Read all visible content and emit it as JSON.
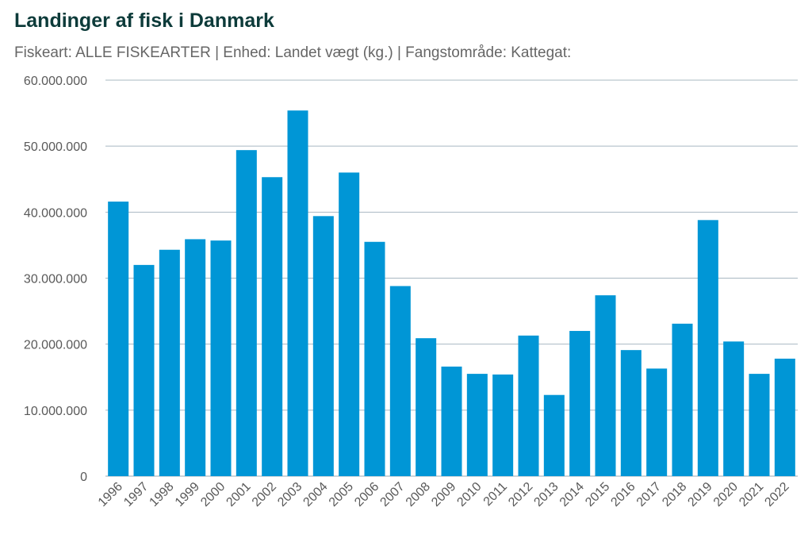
{
  "chart_data": {
    "type": "bar",
    "title": "Landinger af fisk i Danmark",
    "subtitle": "Fiskeart: ALLE FISKEARTER | Enhed: Landet vægt (kg.) | Fangstområde: Kattegat:",
    "xlabel": "",
    "ylabel": "",
    "ylim": [
      0,
      60000000
    ],
    "yticks": [
      0,
      10000000,
      20000000,
      30000000,
      40000000,
      50000000,
      60000000
    ],
    "ytick_labels": [
      "0",
      "10.000.000",
      "20.000.000",
      "30.000.000",
      "40.000.000",
      "50.000.000",
      "60.000.000"
    ],
    "grid": true,
    "bar_color": "#0096d6",
    "categories": [
      "1996",
      "1997",
      "1998",
      "1999",
      "2000",
      "2001",
      "2002",
      "2003",
      "2004",
      "2005",
      "2006",
      "2007",
      "2008",
      "2009",
      "2010",
      "2011",
      "2012",
      "2013",
      "2014",
      "2015",
      "2016",
      "2017",
      "2018",
      "2019",
      "2020",
      "2021",
      "2022"
    ],
    "values": [
      41600000,
      32000000,
      34300000,
      35900000,
      35700000,
      49400000,
      45300000,
      55400000,
      39400000,
      46000000,
      35500000,
      28800000,
      20900000,
      16600000,
      15500000,
      15400000,
      21300000,
      12300000,
      22000000,
      27400000,
      19100000,
      16300000,
      23100000,
      38800000,
      20400000,
      15500000,
      17800000
    ]
  }
}
